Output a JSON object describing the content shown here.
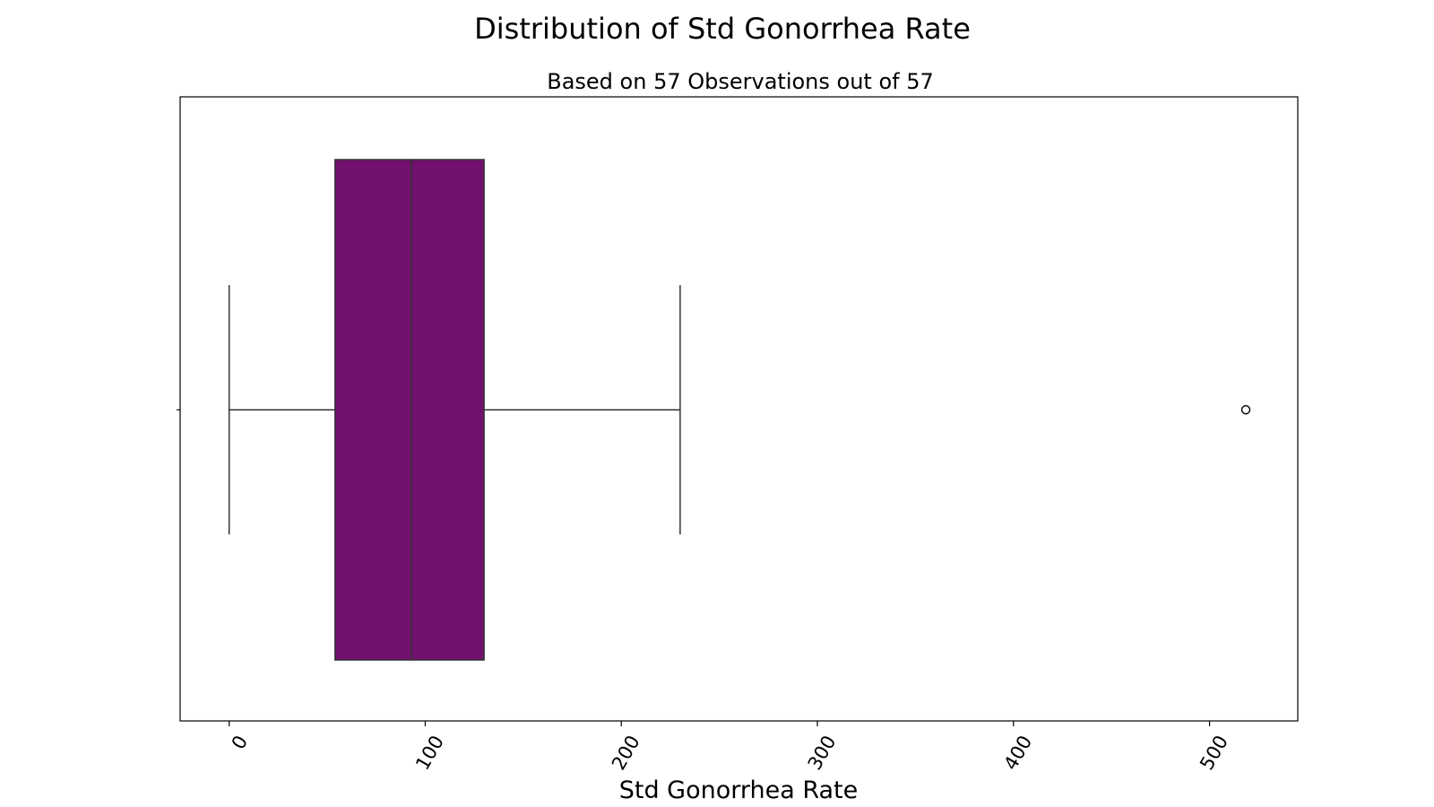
{
  "chart_data": {
    "type": "box",
    "title": "Distribution of Std Gonorrhea Rate",
    "subtitle": "Based on 57 Observations out of 57",
    "xlabel": "Std Gonorrhea Rate",
    "ylabel": "",
    "orientation": "horizontal",
    "xlim": [
      -25,
      545
    ],
    "x_ticks": [
      0,
      100,
      200,
      300,
      400,
      500
    ],
    "x_tick_labels": [
      "0",
      "100",
      "200",
      "300",
      "400",
      "500"
    ],
    "tick_label_rotation": -60,
    "grid": false,
    "legend": "none",
    "box": {
      "whisker_low": 0,
      "q1": 54,
      "median": 93,
      "q3": 130,
      "whisker_high": 230,
      "outliers": [
        518.5
      ]
    },
    "colors": {
      "box_fill": "#71116D",
      "line": "#333333",
      "axes": "#000000"
    }
  }
}
